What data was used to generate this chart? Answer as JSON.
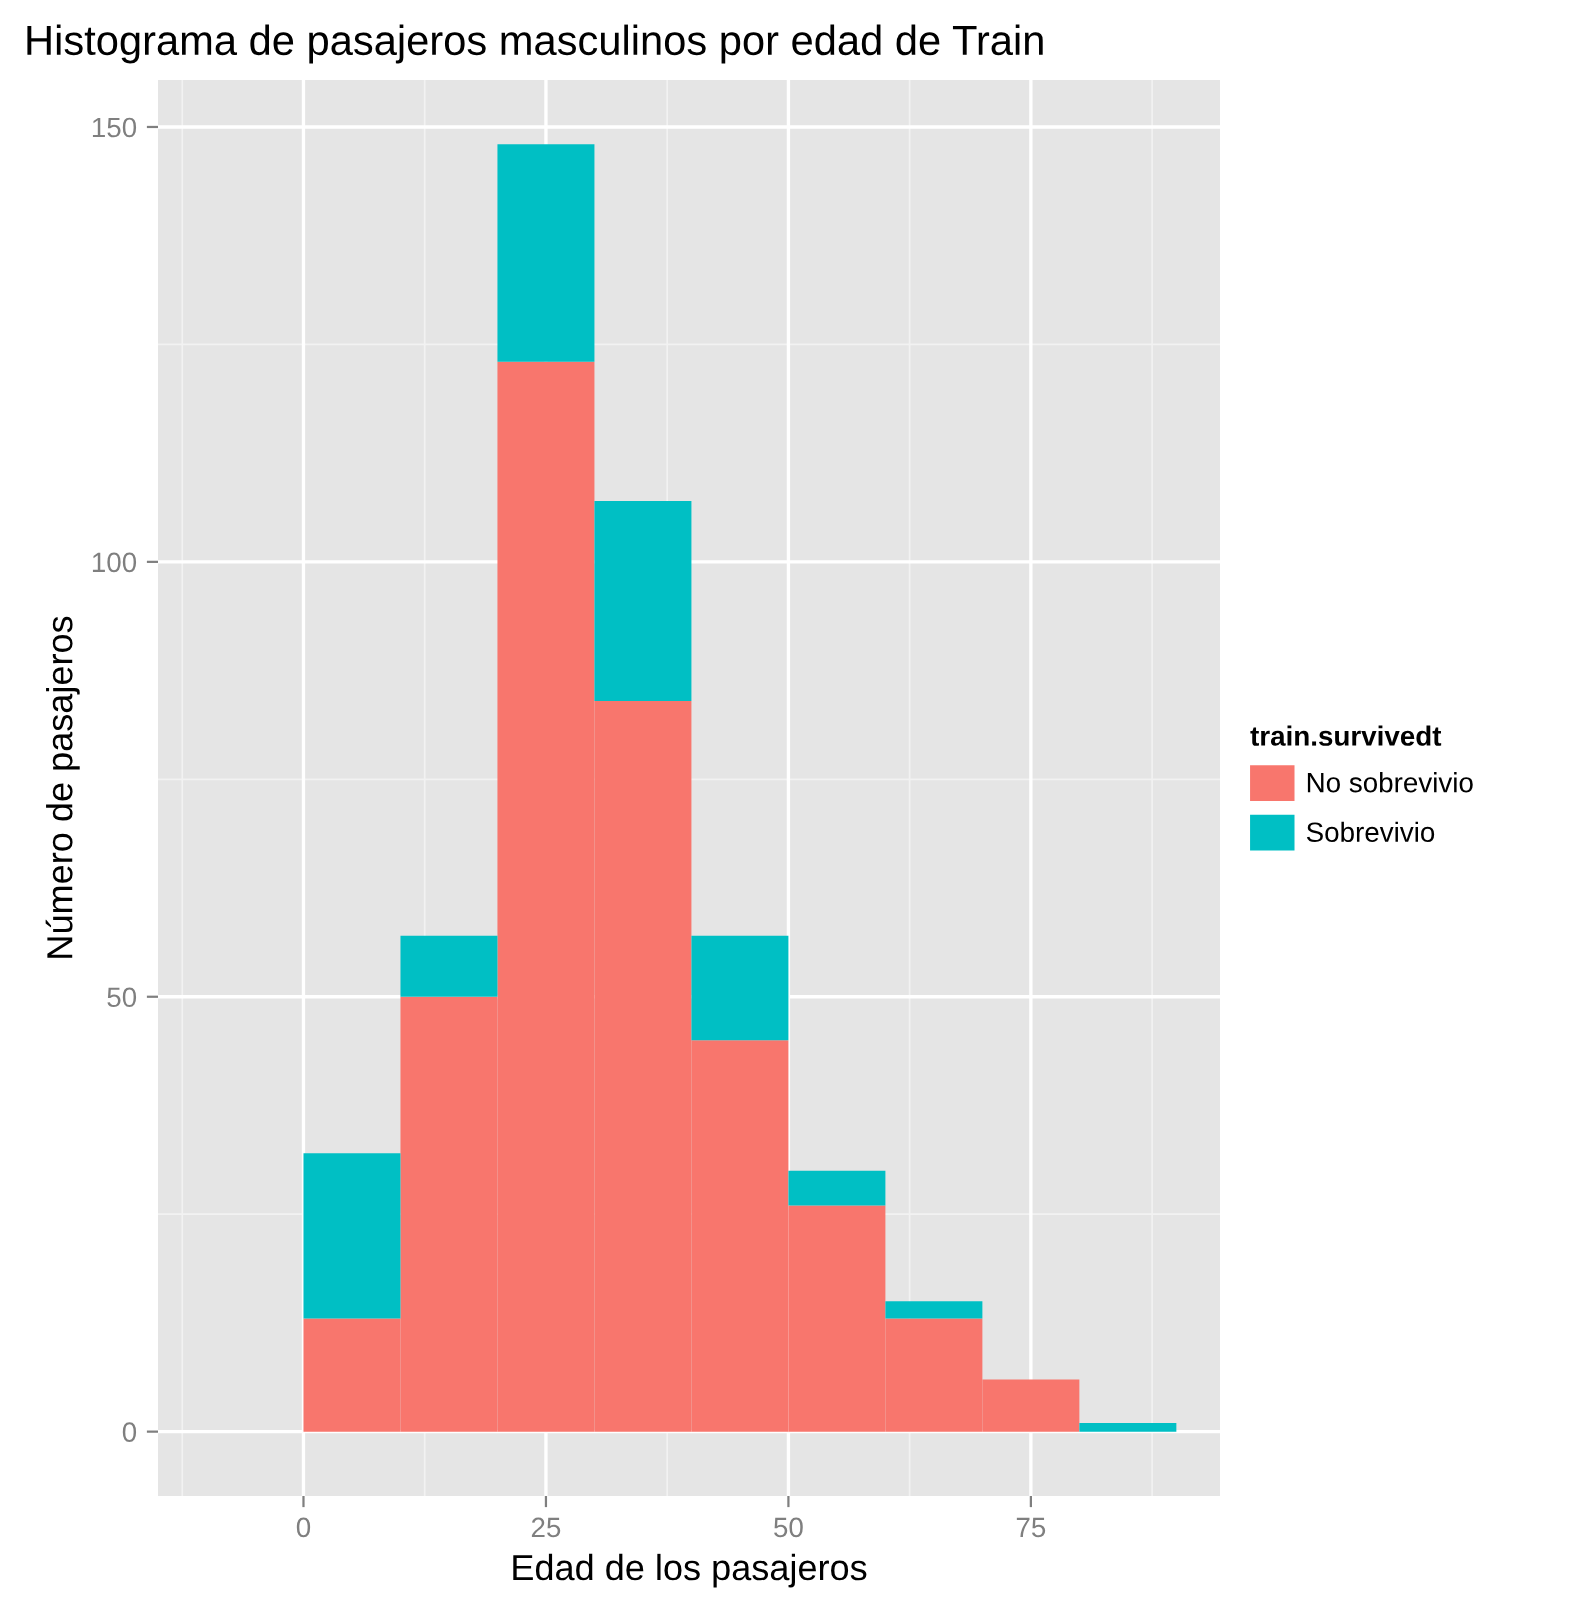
{
  "chart_data": {
    "type": "bar",
    "title": "Histograma de pasajeros masculinos por edad de Train",
    "xlabel": "Edad de los pasajeros",
    "ylabel": "Número de pasajeros",
    "legend_title": "train.survivedt",
    "x": [
      5,
      15,
      25,
      35,
      45,
      55,
      65,
      75,
      85
    ],
    "stacked": true,
    "series": [
      {
        "name": "No sobrevivio",
        "color": "#f8766d",
        "values": [
          13,
          50,
          123,
          84,
          45,
          26,
          13,
          6,
          0
        ]
      },
      {
        "name": "Sobrevivio",
        "color": "#00bfc4",
        "values": [
          19,
          7,
          25,
          23,
          12,
          4,
          2,
          0,
          1
        ]
      }
    ],
    "xlim": [
      -15,
      94.5
    ],
    "xticks": [
      0,
      25,
      50,
      75
    ],
    "ylim": [
      -7.4,
      155.4
    ],
    "yticks": [
      0,
      50,
      100,
      150
    ],
    "grid": true,
    "legend": "right"
  }
}
